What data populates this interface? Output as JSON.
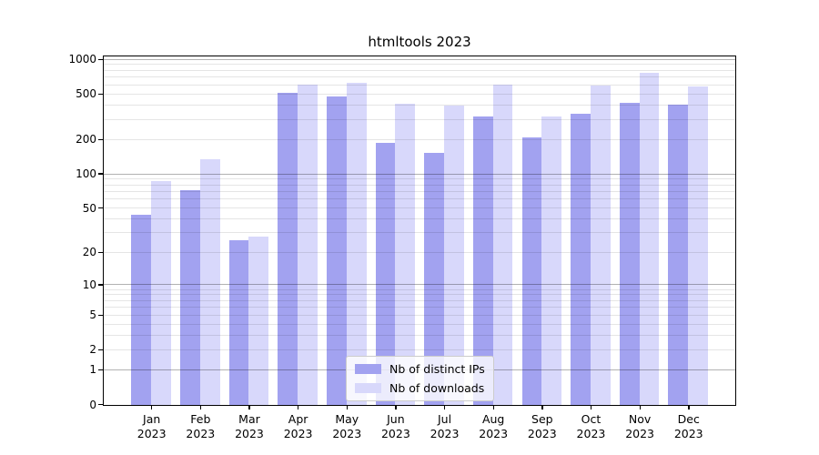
{
  "chart_data": {
    "type": "bar",
    "title": "htmltools 2023",
    "categories": [
      "Jan",
      "Feb",
      "Mar",
      "Apr",
      "May",
      "Jun",
      "Jul",
      "Aug",
      "Sep",
      "Oct",
      "Nov",
      "Dec"
    ],
    "year_label": "2023",
    "series": [
      {
        "name": "Nb of distinct IPs",
        "color": "#a2a2f0",
        "values": [
          44,
          72,
          26,
          510,
          480,
          190,
          155,
          320,
          210,
          340,
          420,
          405
        ]
      },
      {
        "name": "Nb of downloads",
        "color": "#d8d8fb",
        "values": [
          87,
          135,
          28,
          610,
          630,
          410,
          400,
          610,
          320,
          590,
          775,
          585
        ]
      }
    ],
    "y_axis": {
      "scale": "log1p",
      "ticks": [
        0,
        1,
        2,
        5,
        10,
        20,
        50,
        100,
        200,
        500,
        1000
      ],
      "major_gridlines": [
        1,
        10,
        100,
        1000
      ],
      "minor_gridlines": [
        2,
        3,
        4,
        5,
        6,
        7,
        8,
        9,
        20,
        30,
        40,
        50,
        60,
        70,
        80,
        90,
        200,
        300,
        400,
        500,
        600,
        700,
        800,
        900
      ],
      "max": 1000
    },
    "legend_position": "lower-center",
    "grid": true,
    "colors": {
      "grid_major": "#adadad",
      "grid_minor": "#e6e6e6",
      "axis": "#000000",
      "legend_border": "#cccccc"
    }
  }
}
